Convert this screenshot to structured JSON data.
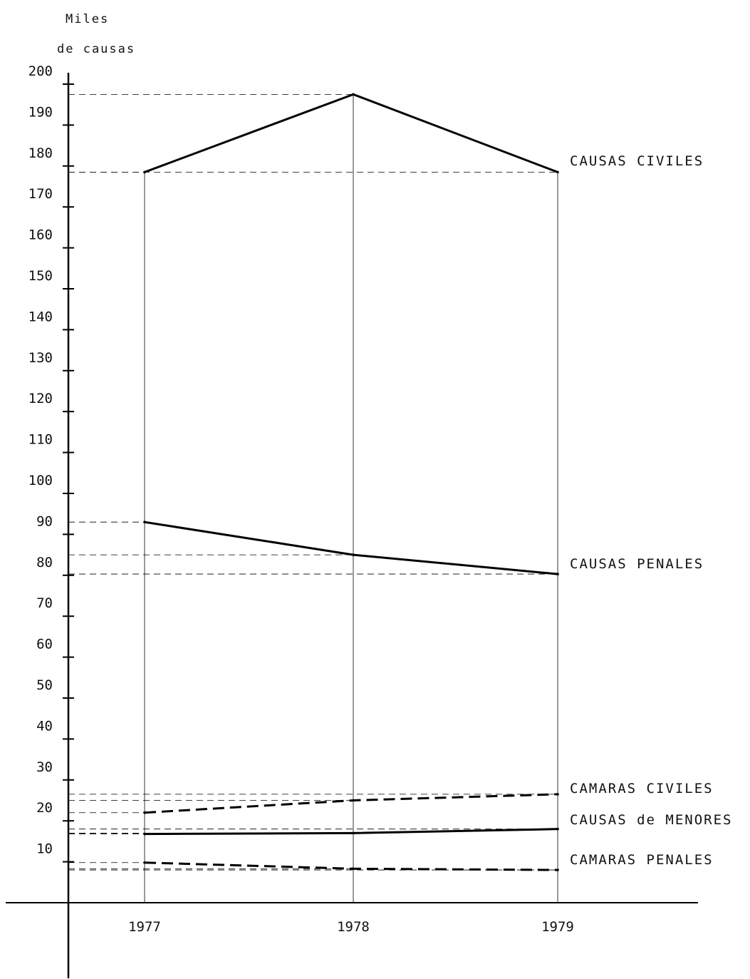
{
  "chart_data": {
    "type": "line",
    "ylabel_line1": "Miles",
    "ylabel_line2": "de causas",
    "xlabel": "",
    "title": "",
    "categories": [
      "1977",
      "1978",
      "1979"
    ],
    "ylim": [
      0,
      200
    ],
    "yticks": [
      10,
      20,
      30,
      40,
      50,
      60,
      70,
      80,
      90,
      100,
      110,
      120,
      130,
      140,
      150,
      160,
      170,
      180,
      190,
      200
    ],
    "grid": false,
    "series": [
      {
        "name": "CAUSAS CIVILES",
        "values": [
          178.5,
          197.5,
          178.5
        ],
        "style": "solid-bold",
        "color": "#000000"
      },
      {
        "name": "CAUSAS PENALES",
        "values": [
          93,
          85,
          80.3
        ],
        "style": "solid-bold",
        "color": "#000000"
      },
      {
        "name": "CAMARAS CIVILES",
        "values": [
          22,
          25,
          26.5
        ],
        "style": "dashed-bold",
        "color": "#000000"
      },
      {
        "name": "CAUSAS de MENORES",
        "values": [
          16.8,
          17,
          18
        ],
        "style": "solid-bold",
        "color": "#000000"
      },
      {
        "name": "CAMARAS PENALES",
        "values": [
          9.8,
          8.3,
          8
        ],
        "style": "dashed-bold",
        "color": "#000000"
      }
    ]
  }
}
